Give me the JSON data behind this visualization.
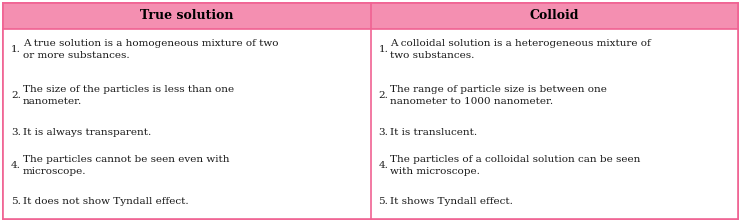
{
  "header_left": "True solution",
  "header_right": "Colloid",
  "header_bg": "#F48FB1",
  "header_text_color": "#000000",
  "cell_bg": "#FFFFFF",
  "outer_bg": "#FCE4EC",
  "border_color": "#F06292",
  "text_color": "#1a1a1a",
  "left_items": [
    [
      "1.",
      "A true solution is a homogeneous mixture of two\nor more substances."
    ],
    [
      "2.",
      "The size of the particles is less than one\nnanometer."
    ],
    [
      "3.",
      "It is always transparent."
    ],
    [
      "4.",
      "The particles cannot be seen even with\nmicroscope."
    ],
    [
      "5.",
      "It does not show Tyndall effect."
    ]
  ],
  "right_items": [
    [
      "1.",
      "A colloidal solution is a heterogeneous mixture of\ntwo substances."
    ],
    [
      "2.",
      "The range of particle size is between one\nnanometer to 1000 nanometer."
    ],
    [
      "3.",
      "It is translucent."
    ],
    [
      "4.",
      "The particles of a colloidal solution can be seen\nwith microscope."
    ],
    [
      "5.",
      "It shows Tyndall effect."
    ]
  ],
  "font_size": 7.5,
  "header_font_size": 9.0,
  "fig_width": 7.41,
  "fig_height": 2.22,
  "dpi": 100
}
